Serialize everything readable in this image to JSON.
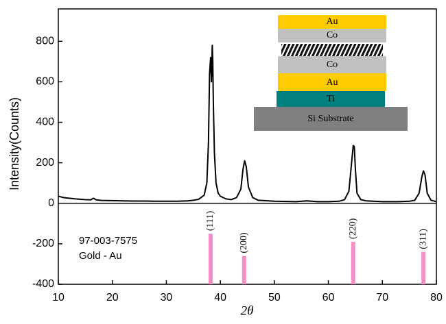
{
  "chart_data": {
    "type": "line",
    "ylabel": "Intensity(Counts)",
    "xlabel": "2θ",
    "color": "#000000",
    "x": [
      10,
      11,
      12,
      13,
      14,
      15,
      16,
      16.5,
      17,
      18,
      20,
      22,
      24,
      26,
      28,
      30,
      32,
      34,
      35,
      36,
      37,
      37.5,
      37.8,
      38,
      38.2,
      38.35,
      38.5,
      38.6,
      38.7,
      38.9,
      39.2,
      39.6,
      40,
      41,
      42,
      43,
      43.8,
      44.2,
      44.5,
      44.8,
      45.2,
      46,
      47,
      50,
      54,
      56,
      58,
      60,
      62,
      63,
      63.8,
      64.3,
      64.6,
      64.8,
      65,
      65.3,
      66,
      67,
      70,
      73,
      75,
      76,
      76.8,
      77.3,
      77.6,
      77.9,
      78.3,
      79,
      80
    ],
    "values": [
      35,
      28,
      25,
      22,
      20,
      18,
      17,
      25,
      17,
      14,
      13,
      12,
      11,
      11,
      10,
      10,
      10,
      12,
      15,
      20,
      40,
      100,
      300,
      640,
      720,
      600,
      780,
      700,
      500,
      250,
      100,
      50,
      35,
      22,
      18,
      28,
      70,
      170,
      210,
      180,
      80,
      28,
      15,
      10,
      8,
      12,
      8,
      8,
      10,
      18,
      60,
      200,
      285,
      280,
      170,
      50,
      18,
      12,
      8,
      8,
      10,
      15,
      50,
      130,
      160,
      140,
      50,
      15,
      8
    ],
    "xlim": [
      10,
      80
    ],
    "ylim": [
      -400,
      960
    ],
    "xticks": [
      10,
      20,
      30,
      40,
      50,
      60,
      70,
      80
    ],
    "yticks": [
      -400,
      -200,
      0,
      200,
      400,
      600,
      800
    ],
    "reference": {
      "title": "97-003-7575",
      "subtitle": "Gold - Au",
      "color": "#f48fc8",
      "x": [
        38.2,
        44.4,
        64.6,
        77.6
      ],
      "values": [
        -150,
        -260,
        -190,
        -240
      ],
      "labels": [
        "(111)",
        "(200)",
        "(220)",
        "(311)"
      ]
    }
  },
  "inset": {
    "layers": [
      "Au",
      "Co",
      "Co",
      "Au",
      "Ti",
      "Si Substrate"
    ]
  }
}
